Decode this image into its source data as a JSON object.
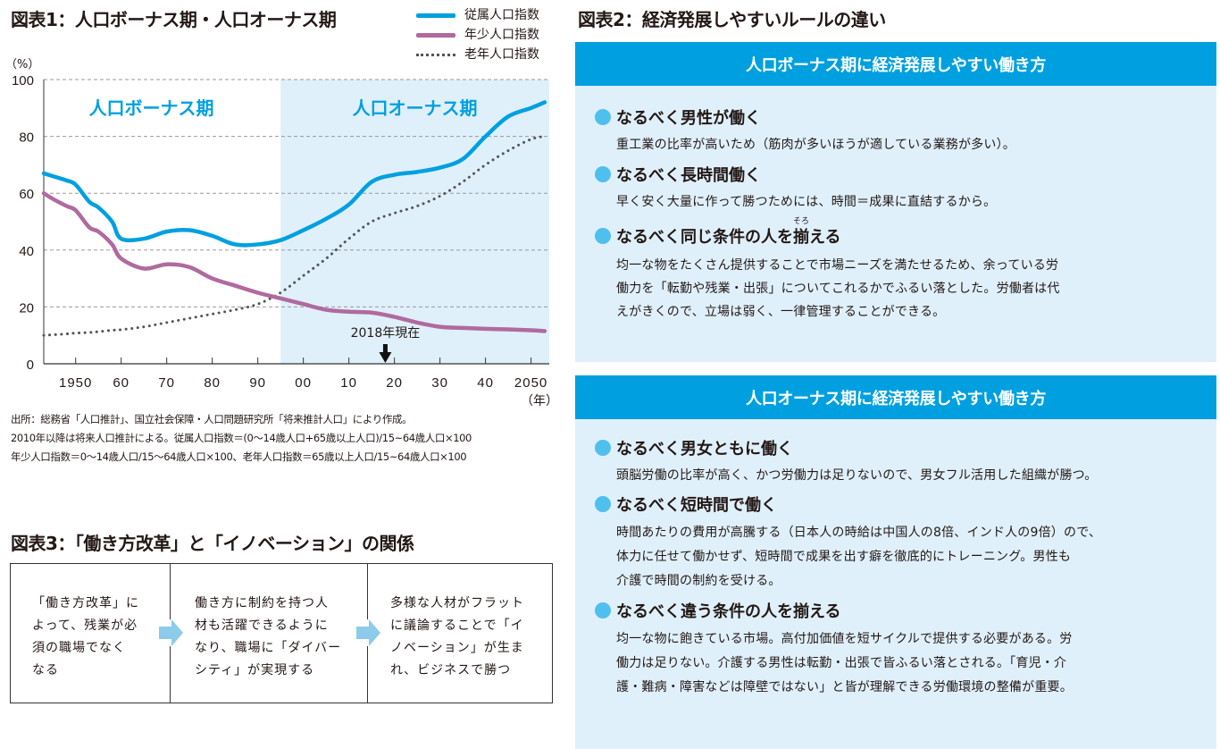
{
  "figure1": {
    "title": "図表1：人口ボーナス期・人口オーナス期",
    "source_lines": [
      "出所：総務省「人口推計」、国立社会保障・人口問題研究所「将来推計人口」により作成。",
      "2010年以降は将来人口推計による。従属人口指数＝(0～14歳人口+65歳以上人口)/15~64歳人口×100",
      "年少人口指数＝0～14歳人口/15～64歳人口×100、老年人口指数＝65歳以上人口/15~64歳人口×100"
    ]
  },
  "chart_data": {
    "type": "line",
    "title": "図表1：人口ボーナス期・人口オーナス期",
    "xlabel": "（年）",
    "ylabel": "（%）",
    "xlim": [
      1943,
      2054
    ],
    "ylim": [
      0,
      100
    ],
    "yticks": [
      0,
      20,
      40,
      60,
      80,
      100
    ],
    "xticks": [
      1950,
      1960,
      1970,
      1980,
      1990,
      2000,
      2010,
      2020,
      2030,
      2040,
      2050
    ],
    "xtick_labels": [
      "1950",
      "60",
      "70",
      "80",
      "90",
      "00",
      "10",
      "20",
      "30",
      "40",
      "2050"
    ],
    "grid": true,
    "legend_position": "top-right",
    "x": [
      1943,
      1945,
      1948,
      1950,
      1953,
      1955,
      1958,
      1960,
      1965,
      1970,
      1975,
      1980,
      1985,
      1990,
      1995,
      2000,
      2005,
      2010,
      2015,
      2020,
      2025,
      2030,
      2035,
      2040,
      2045,
      2050,
      2053
    ],
    "series": [
      {
        "name": "従属人口指数",
        "color": "#00a0e0",
        "style": "solid",
        "values": [
          67,
          66,
          64.5,
          63,
          57,
          55,
          50,
          44,
          44,
          46.5,
          47,
          45,
          42,
          42,
          43.5,
          47,
          51,
          56,
          64,
          66.5,
          67.5,
          69,
          72,
          80,
          87,
          90,
          92
        ]
      },
      {
        "name": "年少人口指数",
        "color": "#b06a9e",
        "style": "solid",
        "values": [
          60,
          58,
          55.5,
          54,
          48,
          46.5,
          42,
          37,
          33.5,
          35,
          34,
          30,
          27.5,
          25,
          23,
          21,
          19,
          18.3,
          18,
          16.5,
          14.5,
          13,
          12.6,
          12.3,
          12.1,
          11.8,
          11.5
        ]
      },
      {
        "name": "老年人口指数",
        "color": "#555555",
        "style": "dotted",
        "values": [
          10,
          10.2,
          10.5,
          10.8,
          11,
          11.3,
          11.8,
          12,
          13,
          14.5,
          16,
          17.5,
          19,
          21,
          25,
          31,
          37,
          44,
          50,
          53,
          55.5,
          59,
          64,
          70,
          75,
          79,
          80
        ]
      }
    ],
    "regions": [
      {
        "label": "人口ボーナス期",
        "from": 1943,
        "to": 1995,
        "fill": "#ffffff",
        "text_color": "#00a0e0"
      },
      {
        "label": "人口オーナス期",
        "from": 1995,
        "to": 2054,
        "fill": "#dff0fb",
        "text_color": "#00a0e0"
      }
    ],
    "annotations": [
      {
        "text": "2018年現在",
        "x": 2018,
        "type": "arrow-down"
      }
    ]
  },
  "figure2": {
    "title": "図表2：経済発展しやすいルールの違い",
    "panels": [
      {
        "heading": "人口ボーナス期に経済発展しやすい働き方",
        "rules": [
          {
            "title": "なるべく男性が働く",
            "lines": [
              "重工業の比率が高いため（筋肉が多いほうが適している業務が多い）。"
            ]
          },
          {
            "title": "なるべく長時間働く",
            "lines": [
              "早く安く大量に作って勝つためには、時間＝成果に直結するから。"
            ]
          },
          {
            "title_before": "なるべく同じ条件の人を",
            "title_ruby_base": "揃",
            "title_ruby": "そろ",
            "title_after": "える",
            "lines": [
              "均一な物をたくさん提供することで市場ニーズを満たせるため、余っている労",
              "働力を「転勤や残業・出張」についてこれるかでふるい落とした。労働者は代",
              "えがきくので、立場は弱く、一律管理することができる。"
            ]
          }
        ]
      },
      {
        "heading": "人口オーナス期に経済発展しやすい働き方",
        "rules": [
          {
            "title": "なるべく男女ともに働く",
            "lines": [
              "頭脳労働の比率が高く、かつ労働力は足りないので、男女フル活用した組織が勝つ。"
            ]
          },
          {
            "title": "なるべく短時間で働く",
            "lines": [
              "時間あたりの費用が高騰する（日本人の時給は中国人の8倍、インド人の9倍）ので、",
              "体力に任せて働かせず、短時間で成果を出す癖を徹底的にトレーニング。男性も",
              "介護で時間の制約を受ける。"
            ]
          },
          {
            "title": "なるべく違う条件の人を揃える",
            "lines": [
              "均一な物に飽きている市場。高付加価値を短サイクルで提供する必要がある。労",
              "働力は足りない。介護する男性は転勤・出張で皆ふるい落とされる。「育児・介",
              "護・難病・障害などは障壁ではない」と皆が理解できる労働環境の整備が重要。"
            ]
          }
        ]
      }
    ]
  },
  "figure3": {
    "title": "図表3：「働き方改革」と「イノベーション」の関係",
    "steps": [
      {
        "lines": [
          "「働き方改革」に",
          "よって、残業が必",
          "須の職場でなく",
          "なる"
        ]
      },
      {
        "lines": [
          "働き方に制約を持つ人",
          "材も活躍できるように",
          "なり、職場に「ダイバー",
          "シティ」が実現する"
        ]
      },
      {
        "lines": [
          "多様な人材がフラット",
          "に議論することで「イ",
          "ノベーション」が生ま",
          "れ、ビジネスで勝つ"
        ]
      }
    ],
    "arrow_color": "#8ccbea"
  }
}
